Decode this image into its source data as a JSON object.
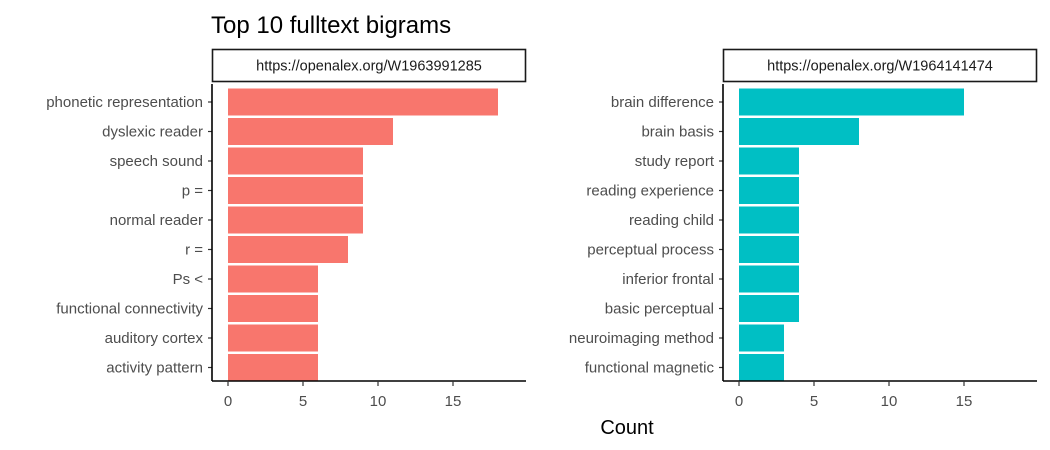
{
  "chart_data": {
    "type": "bar",
    "orientation": "horizontal",
    "title": "Top 10 fulltext bigrams",
    "xlabel": "Count",
    "ylabel": "",
    "xlim": [
      0,
      19
    ],
    "x_ticks": [
      0,
      5,
      10,
      15
    ],
    "grid": false,
    "legend": "none",
    "panels": [
      {
        "strip_label": "https://openalex.org/W1963991285",
        "color": "#F8766D",
        "categories": [
          "phonetic representation",
          "dyslexic reader",
          "speech sound",
          "p =",
          "normal reader",
          "r =",
          "Ps <",
          "functional connectivity",
          "auditory cortex",
          "activity pattern"
        ],
        "values": [
          18,
          11,
          9,
          9,
          9,
          8,
          6,
          6,
          6,
          6
        ]
      },
      {
        "strip_label": "https://openalex.org/W1964141474",
        "color": "#00BFC4",
        "categories": [
          "brain difference",
          "brain basis",
          "study report",
          "reading experience",
          "reading child",
          "perceptual process",
          "inferior frontal",
          "basic perceptual",
          "neuroimaging method",
          "functional magnetic"
        ],
        "values": [
          15,
          8,
          4,
          4,
          4,
          4,
          4,
          4,
          3,
          3
        ]
      }
    ]
  }
}
